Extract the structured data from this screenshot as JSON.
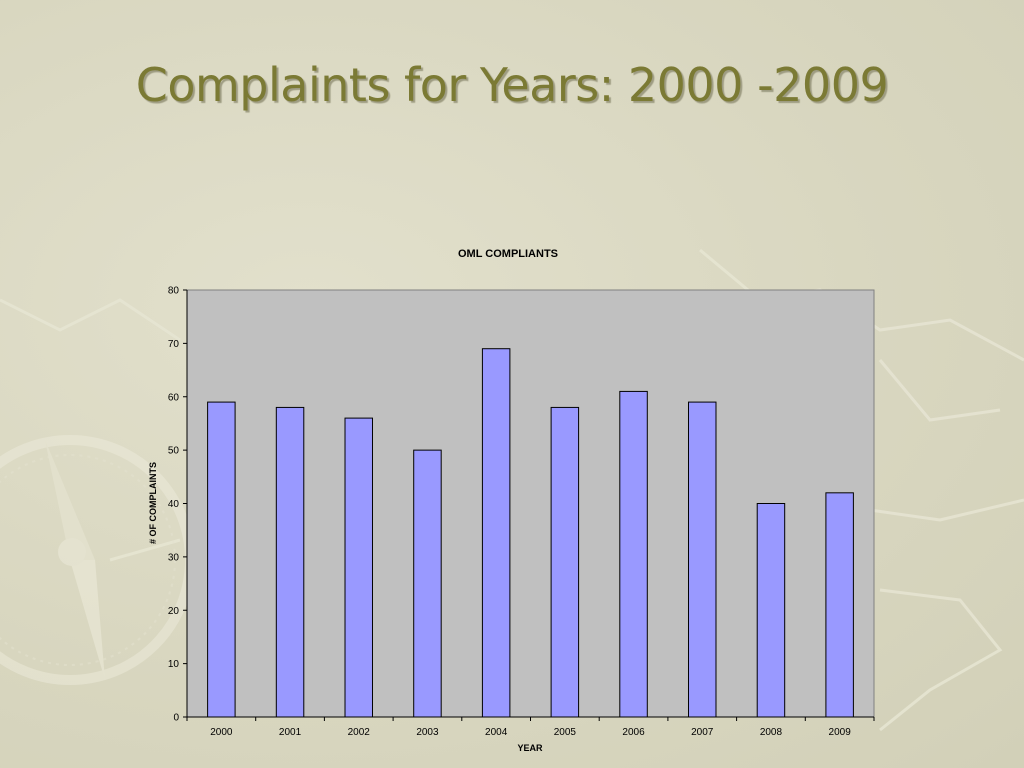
{
  "slide": {
    "title": "Complaints for Years: 2000 -2009"
  },
  "colors": {
    "background": "#dcdac4",
    "title": "#7b7a34",
    "plot_area": "#c0c0c0",
    "bar_fill": "#9999ff",
    "bar_stroke": "#000000"
  },
  "chart_data": {
    "type": "bar",
    "title": "OML COMPLIANTS",
    "xlabel": "YEAR",
    "ylabel": "# OF COMPLAINTS",
    "categories": [
      "2000",
      "2001",
      "2002",
      "2003",
      "2004",
      "2005",
      "2006",
      "2007",
      "2008",
      "2009"
    ],
    "values": [
      59,
      58,
      56,
      50,
      69,
      58,
      61,
      59,
      40,
      42
    ],
    "ylim": [
      0,
      80
    ],
    "yticks": [
      0,
      10,
      20,
      30,
      40,
      50,
      60,
      70,
      80
    ],
    "grid": false,
    "legend": "none"
  }
}
